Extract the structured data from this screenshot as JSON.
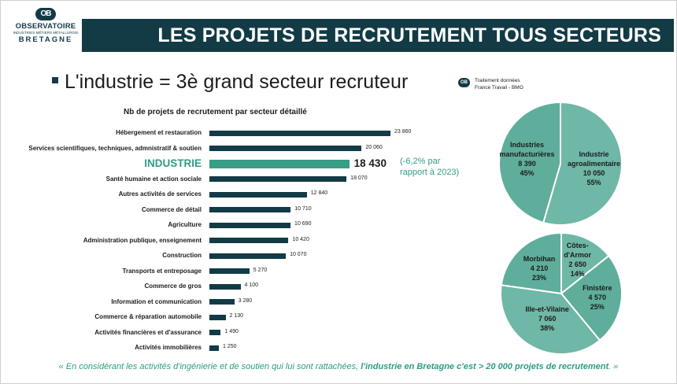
{
  "logo": {
    "line1": "OBSERVATOIRE",
    "line2": "INDUSTRIES MÉTIERS MÉTALLURGIE",
    "line3": "BRETAGNE",
    "mark": "OB"
  },
  "banner": "LES PROJETS DE RECRUTEMENT TOUS SECTEURS",
  "headline": "L'industrie = 3è grand secteur recruteur",
  "source": {
    "line1": "Traitement données",
    "line2": "France Travail - BMO"
  },
  "annotation": {
    "line1": "(-6,2% par",
    "line2": "rapport à 2023)"
  },
  "footer": {
    "part1": "« En considérant les activités d'ingénierie et de soutien qui lui sont rattachées, ",
    "part2": "l'industrie en Bretagne c'est > 20 000 projets de recrutement",
    "part3": ". »"
  },
  "chart_data": [
    {
      "type": "bar",
      "orientation": "horizontal",
      "title": "Nb de projets de recrutement par secteur détaillé",
      "categories": [
        "Hébergement et restauration",
        "Services scientifiques, techniques, admnistratif & soutien",
        "INDUSTRIE",
        "Santé humaine et action sociale",
        "Autres activités de services",
        "Commerce de détail",
        "Agriculture",
        "Administration publique, enseignement",
        "Construction",
        "Transports et entreposage",
        "Commerce de gros",
        "Information et communication",
        "Commerce & réparation automobile",
        "Activités financières et d'assurance",
        "Activités immobilières"
      ],
      "values": [
        23860,
        20060,
        18430,
        18070,
        12840,
        10710,
        10690,
        10420,
        10070,
        5270,
        4100,
        3280,
        2130,
        1490,
        1250
      ],
      "value_labels": [
        "23 860",
        "20 060",
        "18 430",
        "18 070",
        "12 840",
        "10 710",
        "10 690",
        "10 420",
        "10 070",
        "5 270",
        "4 100",
        "3 280",
        "2 130",
        "1 490",
        "1 250"
      ],
      "highlight_index": 2,
      "colors": {
        "default": "#123b46",
        "highlight": "#3a9d86"
      }
    },
    {
      "type": "pie",
      "slices": [
        {
          "label_lines": [
            "Industrie",
            "agroalimentaire",
            "10 050",
            "55%"
          ],
          "value": 10050,
          "percent": 55
        },
        {
          "label_lines": [
            "Industries",
            "manufacturières",
            "8 390",
            "45%"
          ],
          "value": 8390,
          "percent": 45
        }
      ],
      "colors": [
        "#6fb7a6",
        "#5fae9c"
      ]
    },
    {
      "type": "pie",
      "slices": [
        {
          "label_lines": [
            "Côtes-",
            "d'Armor",
            "2 650",
            "14%"
          ],
          "value": 2650,
          "percent": 14
        },
        {
          "label_lines": [
            "Finistère",
            "4 570",
            "25%"
          ],
          "value": 4570,
          "percent": 25
        },
        {
          "label_lines": [
            "Ille-et-Vilaine",
            "7 060",
            "38%"
          ],
          "value": 7060,
          "percent": 38
        },
        {
          "label_lines": [
            "Morbihan",
            "4 210",
            "23%"
          ],
          "value": 4210,
          "percent": 23
        }
      ],
      "colors": [
        "#6fb7a6",
        "#5fae9c",
        "#6fb7a6",
        "#5fae9c"
      ]
    }
  ]
}
